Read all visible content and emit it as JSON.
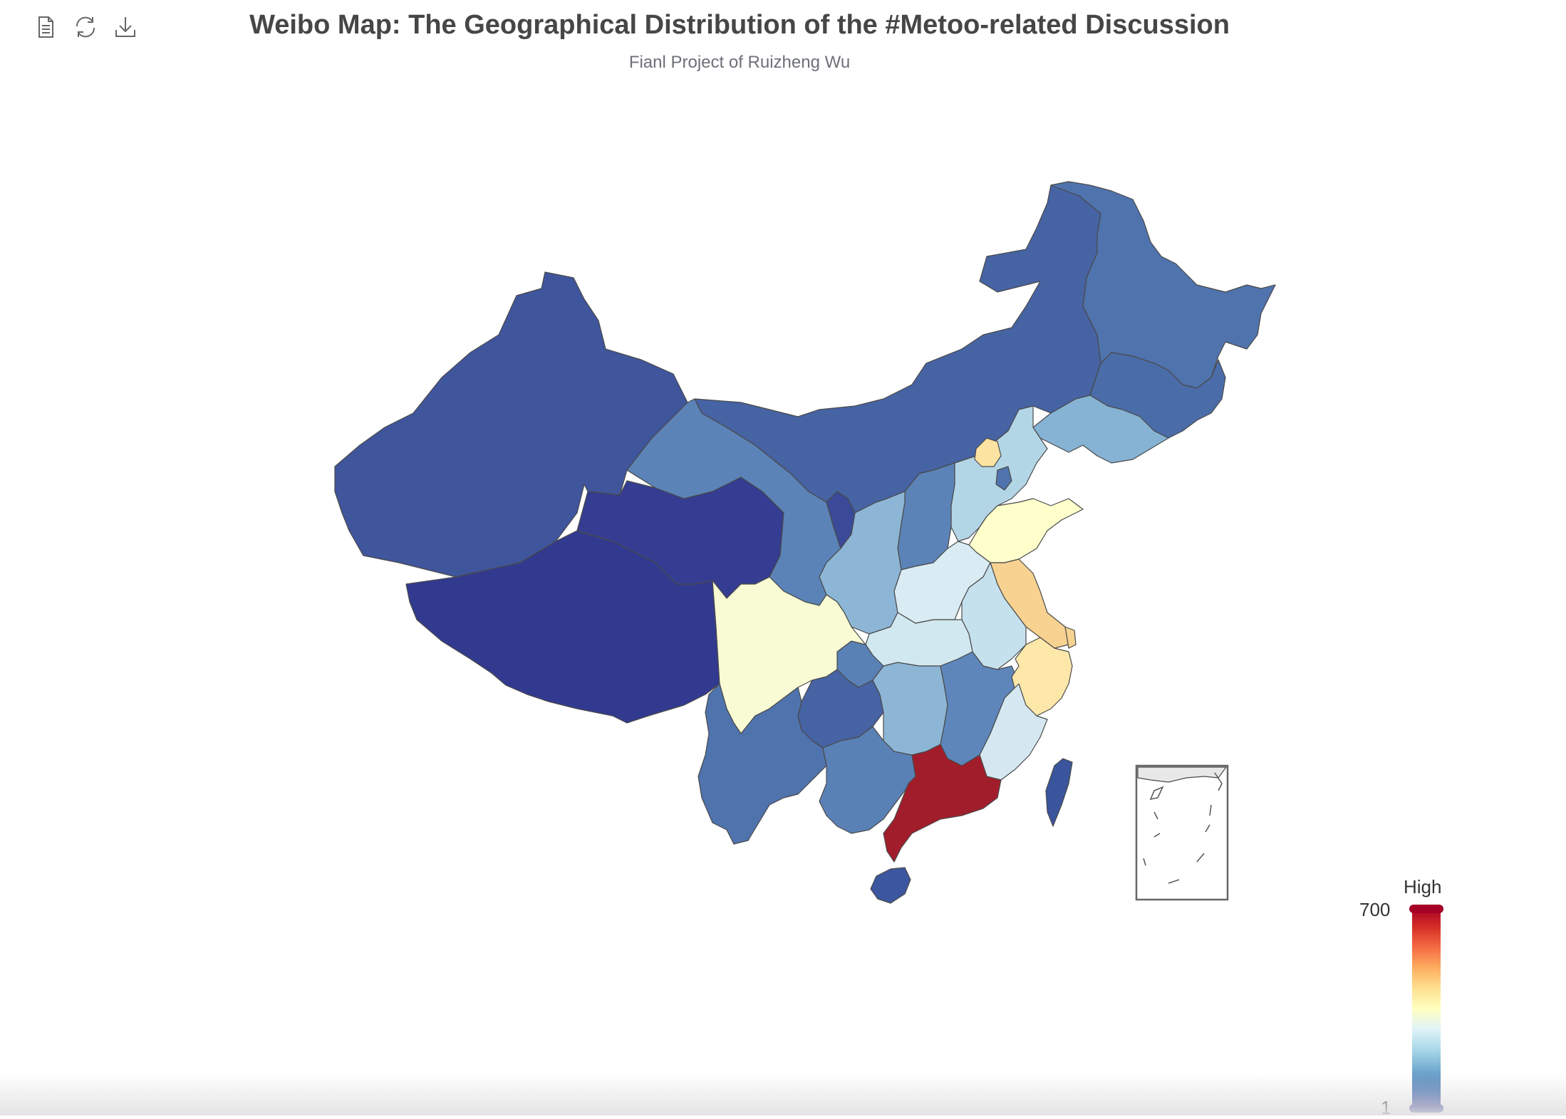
{
  "title": "Weibo Map: The Geographical Distribution of the #Metoo-related Discussion",
  "subtitle": "Fianl Project of Ruizheng Wu",
  "toolbox": {
    "items": [
      {
        "name": "data-view",
        "icon": "document-icon"
      },
      {
        "name": "restore",
        "icon": "refresh-icon"
      },
      {
        "name": "save-as-image",
        "icon": "download-icon"
      }
    ]
  },
  "visual_map": {
    "text_high": "High",
    "max_label": "700",
    "min_label": "1",
    "colors": [
      "#313695",
      "#4575b4",
      "#74add1",
      "#abd9e9",
      "#e0f3f8",
      "#ffffbf",
      "#fee090",
      "#fdae61",
      "#f46d43",
      "#d73027",
      "#a50026"
    ]
  },
  "chart_data": {
    "type": "map",
    "map": "china",
    "title": "Weibo Map: The Geographical Distribution of the #Metoo-related Discussion",
    "subtitle": "Fianl Project of Ruizheng Wu",
    "value_range": [
      1,
      700
    ],
    "legend_position": "bottom-right",
    "colors": {
      "xinjiang": "#3f559c",
      "tibet": "#323a8f",
      "qinghai": "#343d91",
      "gansu": "#5b83b8",
      "inner_mongolia": "#4663a3",
      "heilongjiang": "#4f73ad",
      "jilin": "#4a6ca9",
      "liaoning": "#86b3d4",
      "hebei": "#b3d6e6",
      "beijing": "#fde3a1",
      "tianjin": "#4f73ad",
      "shandong": "#ffffcc",
      "jiangsu": "#f7d291",
      "shanghai": "#f7d291",
      "zhejiang": "#fde8aa",
      "fujian": "#d5e8f1",
      "guangdong": "#a21d2b",
      "guangxi": "#5a81b6",
      "hainan": "#3c579f",
      "yunnan": "#4f73ad",
      "guizhou": "#4663a3",
      "sichuan": "#f8fbd4",
      "chongqing": "#5a81b6",
      "hubei": "#d2e8f1",
      "hunan": "#8db6d6",
      "jiangxi": "#5e86bb",
      "anhui": "#c6e1ee",
      "henan": "#d9ecf3",
      "shanxi": "#5b83b8",
      "shaanxi": "#8db6d6",
      "ningxia": "#3a4a98",
      "taiwan": "#3a559d",
      "south_china_sea_inset": "#e8e8e8"
    }
  }
}
